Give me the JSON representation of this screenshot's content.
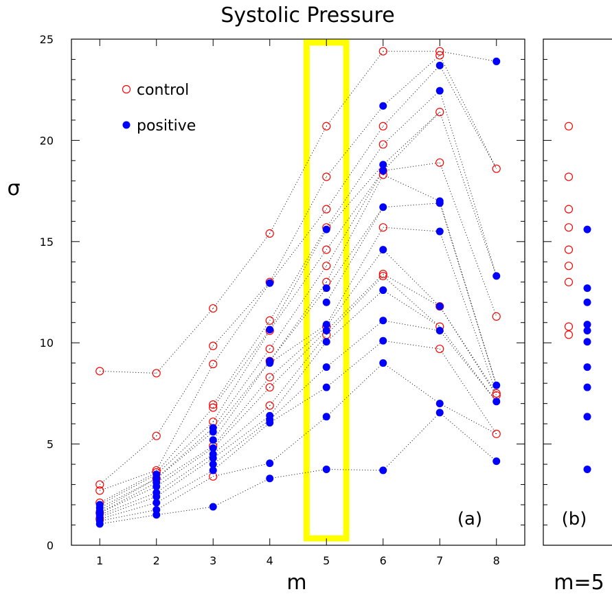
{
  "chart_data": [
    {
      "type": "scatter",
      "title": "Systolic Pressure",
      "xlabel": "m",
      "ylabel": "σ",
      "xlim": [
        0.5,
        8.5
      ],
      "ylim": [
        0,
        25
      ],
      "xticks": [
        "1",
        "2",
        "3",
        "4",
        "5",
        "6",
        "7",
        "8"
      ],
      "yticks": [
        "0",
        "5",
        "10",
        "15",
        "20",
        "25"
      ],
      "panel_label": "(a)",
      "highlight": {
        "x_range": [
          4.65,
          5.35
        ],
        "color": "#ffff00"
      },
      "grid": false,
      "legend_position": "top-left",
      "series": [
        {
          "name": "control",
          "marker": "open-circle",
          "color": "#ff0000",
          "points": [
            [
              1,
              8.6
            ],
            [
              1,
              3.0
            ],
            [
              1,
              2.7
            ],
            [
              1,
              2.1
            ],
            [
              1,
              1.6
            ],
            [
              1,
              1.3
            ],
            [
              2,
              8.5
            ],
            [
              2,
              5.4
            ],
            [
              2,
              3.7
            ],
            [
              2,
              3.6
            ],
            [
              2,
              3.3
            ],
            [
              3,
              11.7
            ],
            [
              3,
              9.85
            ],
            [
              3,
              8.95
            ],
            [
              3,
              6.95
            ],
            [
              3,
              6.8
            ],
            [
              3,
              6.1
            ],
            [
              3,
              4.9
            ],
            [
              3,
              3.4
            ],
            [
              4,
              15.4
            ],
            [
              4,
              13.0
            ],
            [
              4,
              11.1
            ],
            [
              4,
              10.6
            ],
            [
              4,
              9.7
            ],
            [
              4,
              9.1
            ],
            [
              4,
              8.3
            ],
            [
              4,
              7.8
            ],
            [
              4,
              6.9
            ],
            [
              5,
              20.7
            ],
            [
              5,
              18.2
            ],
            [
              5,
              16.6
            ],
            [
              5,
              15.7
            ],
            [
              5,
              14.6
            ],
            [
              5,
              13.8
            ],
            [
              5,
              13.0
            ],
            [
              5,
              10.8
            ],
            [
              5,
              10.4
            ],
            [
              6,
              24.4
            ],
            [
              6,
              20.7
            ],
            [
              6,
              19.8
            ],
            [
              6,
              18.5
            ],
            [
              6,
              18.3
            ],
            [
              6,
              15.7
            ],
            [
              6,
              13.4
            ],
            [
              6,
              13.3
            ],
            [
              7,
              24.4
            ],
            [
              7,
              24.2
            ],
            [
              7,
              21.4
            ],
            [
              7,
              18.9
            ],
            [
              7,
              11.8
            ],
            [
              7,
              10.8
            ],
            [
              7,
              9.7
            ],
            [
              8,
              18.6
            ],
            [
              8,
              11.3
            ],
            [
              8,
              7.5
            ],
            [
              8,
              7.4
            ],
            [
              8,
              5.5
            ]
          ]
        },
        {
          "name": "positive",
          "marker": "filled-circle",
          "color": "#0000ff",
          "points": [
            [
              1,
              2.0
            ],
            [
              1,
              1.85
            ],
            [
              1,
              1.7
            ],
            [
              1,
              1.6
            ],
            [
              1,
              1.5
            ],
            [
              1,
              1.4
            ],
            [
              1,
              1.2
            ],
            [
              1,
              1.05
            ],
            [
              2,
              3.5
            ],
            [
              2,
              3.3
            ],
            [
              2,
              3.1
            ],
            [
              2,
              2.9
            ],
            [
              2,
              2.6
            ],
            [
              2,
              2.4
            ],
            [
              2,
              2.1
            ],
            [
              2,
              1.75
            ],
            [
              2,
              1.5
            ],
            [
              3,
              5.8
            ],
            [
              3,
              5.6
            ],
            [
              3,
              5.2
            ],
            [
              3,
              4.8
            ],
            [
              3,
              4.5
            ],
            [
              3,
              4.3
            ],
            [
              3,
              4.0
            ],
            [
              3,
              3.7
            ],
            [
              3,
              1.9
            ],
            [
              4,
              12.95
            ],
            [
              4,
              10.65
            ],
            [
              4,
              9.1
            ],
            [
              4,
              9.0
            ],
            [
              4,
              6.4
            ],
            [
              4,
              6.2
            ],
            [
              4,
              6.05
            ],
            [
              4,
              4.05
            ],
            [
              4,
              3.3
            ],
            [
              5,
              15.6
            ],
            [
              5,
              12.7
            ],
            [
              5,
              12.0
            ],
            [
              5,
              10.9
            ],
            [
              5,
              10.6
            ],
            [
              5,
              10.05
            ],
            [
              5,
              8.8
            ],
            [
              5,
              7.8
            ],
            [
              5,
              6.35
            ],
            [
              5,
              3.75
            ],
            [
              6,
              21.7
            ],
            [
              6,
              18.8
            ],
            [
              6,
              18.5
            ],
            [
              6,
              16.7
            ],
            [
              6,
              14.6
            ],
            [
              6,
              12.6
            ],
            [
              6,
              11.1
            ],
            [
              6,
              10.1
            ],
            [
              6,
              9.0
            ],
            [
              6,
              3.7
            ],
            [
              7,
              23.7
            ],
            [
              7,
              22.45
            ],
            [
              7,
              17.0
            ],
            [
              7,
              16.9
            ],
            [
              7,
              15.5
            ],
            [
              7,
              11.8
            ],
            [
              7,
              10.6
            ],
            [
              7,
              7.0
            ],
            [
              7,
              6.55
            ],
            [
              8,
              23.9
            ],
            [
              8,
              13.3
            ],
            [
              8,
              7.9
            ],
            [
              8,
              7.1
            ],
            [
              8,
              4.15
            ]
          ]
        }
      ]
    },
    {
      "type": "scatter",
      "xlabel": "m=5",
      "ylim": [
        0,
        25
      ],
      "panel_label": "(b)",
      "series": [
        {
          "name": "control",
          "marker": "open-circle",
          "color": "#ff0000",
          "values": [
            20.7,
            18.2,
            16.6,
            15.7,
            14.6,
            13.8,
            13.0,
            10.8,
            10.4
          ]
        },
        {
          "name": "positive",
          "marker": "filled-circle",
          "color": "#0000ff",
          "values": [
            15.6,
            12.7,
            12.0,
            10.9,
            10.6,
            10.05,
            8.8,
            7.8,
            6.35,
            3.75
          ]
        }
      ]
    }
  ]
}
